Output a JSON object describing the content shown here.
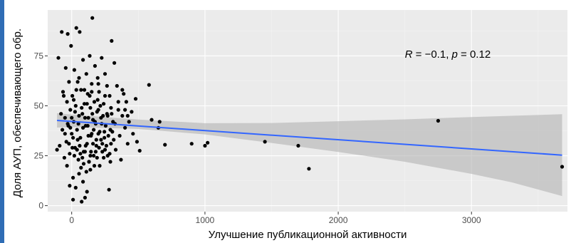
{
  "colors": {
    "panel": "#ebebeb",
    "grid_major": "#ffffff",
    "grid_minor": "#f3f3f3",
    "point": "#000000",
    "line": "#3366ff",
    "ribbon": "#b3b3b3",
    "accent": "#2f6db5"
  },
  "chart_data": {
    "type": "scatter",
    "title": "",
    "xlabel": "Улучшение публикационной активности",
    "ylabel": "Доля АУП, обеспечивающего обр.",
    "xlim": [
      -180,
      3720
    ],
    "ylim": [
      -3,
      98
    ],
    "x_ticks": [
      0,
      1000,
      2000,
      3000
    ],
    "x_tick_labels": [
      "0",
      "1000",
      "2000",
      "3000"
    ],
    "y_ticks": [
      0,
      25,
      50,
      75
    ],
    "y_tick_labels": [
      "0",
      "25",
      "50",
      "75"
    ],
    "grid": true,
    "legend": "none",
    "annotation": {
      "parts": [
        {
          "text": "R",
          "italic": true
        },
        {
          "text": " = −0.1, ",
          "italic": false
        },
        {
          "text": "p",
          "italic": true
        },
        {
          "text": " = 0.12",
          "italic": false
        }
      ],
      "x": 2500,
      "y": 74
    },
    "regression": {
      "x": [
        -110,
        3680
      ],
      "y": [
        42.7,
        25.3
      ]
    },
    "ribbon": {
      "x": [
        -110,
        0,
        500,
        1000,
        1500,
        2000,
        2500,
        3000,
        3300,
        3680
      ],
      "upper": [
        46.3,
        45.6,
        43.1,
        41.3,
        41.4,
        42.3,
        43.2,
        44.4,
        45.0,
        45.8
      ],
      "lower": [
        39.1,
        39.4,
        38.4,
        35.7,
        31.4,
        26.9,
        22.0,
        15.9,
        11.7,
        4.8
      ]
    },
    "points": [
      {
        "x": 2750,
        "y": 42.5
      },
      {
        "x": 3680,
        "y": 19.5
      },
      {
        "x": 1450,
        "y": 32
      },
      {
        "x": 1700,
        "y": 30
      },
      {
        "x": 1780,
        "y": 18.5
      },
      {
        "x": 1000,
        "y": 30
      },
      {
        "x": 1020,
        "y": 31.5
      },
      {
        "x": 900,
        "y": 31
      },
      {
        "x": 700,
        "y": 30.5
      },
      {
        "x": 660,
        "y": 42
      },
      {
        "x": 650,
        "y": 39
      },
      {
        "x": 600,
        "y": 43
      },
      {
        "x": 580,
        "y": 60.5
      },
      {
        "x": 510,
        "y": 27.5
      },
      {
        "x": 490,
        "y": 32
      },
      {
        "x": 480,
        "y": 53.5
      },
      {
        "x": 460,
        "y": 36
      },
      {
        "x": 450,
        "y": 47
      },
      {
        "x": 430,
        "y": 42
      },
      {
        "x": 420,
        "y": 31
      },
      {
        "x": 410,
        "y": 52
      },
      {
        "x": 400,
        "y": 39
      },
      {
        "x": 390,
        "y": 56
      },
      {
        "x": 380,
        "y": 45
      },
      {
        "x": 370,
        "y": 23
      },
      {
        "x": 360,
        "y": 35
      },
      {
        "x": 350,
        "y": 48
      },
      {
        "x": 340,
        "y": 60
      },
      {
        "x": 330,
        "y": 28
      },
      {
        "x": 320,
        "y": 71.5
      },
      {
        "x": 315,
        "y": 33
      },
      {
        "x": 310,
        "y": 42
      },
      {
        "x": 300,
        "y": 82.5
      },
      {
        "x": 295,
        "y": 49
      },
      {
        "x": 290,
        "y": 38
      },
      {
        "x": 285,
        "y": 55
      },
      {
        "x": 280,
        "y": 8
      },
      {
        "x": 270,
        "y": 45
      },
      {
        "x": 265,
        "y": 60
      },
      {
        "x": 260,
        "y": 30
      },
      {
        "x": 250,
        "y": 66
      },
      {
        "x": 245,
        "y": 37
      },
      {
        "x": 240,
        "y": 51
      },
      {
        "x": 230,
        "y": 27
      },
      {
        "x": 225,
        "y": 74
      },
      {
        "x": 220,
        "y": 44
      },
      {
        "x": 210,
        "y": 20
      },
      {
        "x": 205,
        "y": 57
      },
      {
        "x": 200,
        "y": 36
      },
      {
        "x": 195,
        "y": 64
      },
      {
        "x": 190,
        "y": 47
      },
      {
        "x": 185,
        "y": 30
      },
      {
        "x": 180,
        "y": 41
      },
      {
        "x": 175,
        "y": 70
      },
      {
        "x": 170,
        "y": 52
      },
      {
        "x": 165,
        "y": 25
      },
      {
        "x": 160,
        "y": 43
      },
      {
        "x": 155,
        "y": 94
      },
      {
        "x": 150,
        "y": 61
      },
      {
        "x": 145,
        "y": 35
      },
      {
        "x": 140,
        "y": 49
      },
      {
        "x": 135,
        "y": 75
      },
      {
        "x": 130,
        "y": 22
      },
      {
        "x": 125,
        "y": 44
      },
      {
        "x": 120,
        "y": 56
      },
      {
        "x": 115,
        "y": 31
      },
      {
        "x": 110,
        "y": 66
      },
      {
        "x": 105,
        "y": 40
      },
      {
        "x": 100,
        "y": 4
      },
      {
        "x": 95,
        "y": 51
      },
      {
        "x": 90,
        "y": 27
      },
      {
        "x": 85,
        "y": 73
      },
      {
        "x": 80,
        "y": 46
      },
      {
        "x": 75,
        "y": 2
      },
      {
        "x": 70,
        "y": 58
      },
      {
        "x": 65,
        "y": 34
      },
      {
        "x": 60,
        "y": 87
      },
      {
        "x": 55,
        "y": 45
      },
      {
        "x": 50,
        "y": 23
      },
      {
        "x": 45,
        "y": 62
      },
      {
        "x": 40,
        "y": 38
      },
      {
        "x": 35,
        "y": 89
      },
      {
        "x": 30,
        "y": 50
      },
      {
        "x": 25,
        "y": 29
      },
      {
        "x": 20,
        "y": 68
      },
      {
        "x": 15,
        "y": 42
      },
      {
        "x": 10,
        "y": 14
      },
      {
        "x": 5,
        "y": 55
      },
      {
        "x": 0,
        "y": 36
      },
      {
        "x": -5,
        "y": 80
      },
      {
        "x": -10,
        "y": 48
      },
      {
        "x": -15,
        "y": 26
      },
      {
        "x": -20,
        "y": 62
      },
      {
        "x": -25,
        "y": 40
      },
      {
        "x": -30,
        "y": 86
      },
      {
        "x": -35,
        "y": 52
      },
      {
        "x": -40,
        "y": 32
      },
      {
        "x": -45,
        "y": 69
      },
      {
        "x": -50,
        "y": 44
      },
      {
        "x": -55,
        "y": 24
      },
      {
        "x": -60,
        "y": 55
      },
      {
        "x": -70,
        "y": 38
      },
      {
        "x": -80,
        "y": 46
      },
      {
        "x": -90,
        "y": 30
      },
      {
        "x": -100,
        "y": 74
      },
      {
        "x": -110,
        "y": 28
      },
      {
        "x": -75,
        "y": 87
      },
      {
        "x": -65,
        "y": 57
      },
      {
        "x": -35,
        "y": 20
      },
      {
        "x": -15,
        "y": 10
      },
      {
        "x": 10,
        "y": 3
      },
      {
        "x": 30,
        "y": 9
      },
      {
        "x": 55,
        "y": 16
      },
      {
        "x": 85,
        "y": 12
      },
      {
        "x": 115,
        "y": 7
      },
      {
        "x": 140,
        "y": 18
      },
      {
        "x": 25,
        "y": 47
      },
      {
        "x": 45,
        "y": 33
      },
      {
        "x": 65,
        "y": 26
      },
      {
        "x": 85,
        "y": 39
      },
      {
        "x": 105,
        "y": 30
      },
      {
        "x": 125,
        "y": 35
      },
      {
        "x": 145,
        "y": 27
      },
      {
        "x": 165,
        "y": 38
      },
      {
        "x": 185,
        "y": 33
      },
      {
        "x": 205,
        "y": 29
      },
      {
        "x": 225,
        "y": 41
      },
      {
        "x": 245,
        "y": 34
      },
      {
        "x": 265,
        "y": 46
      },
      {
        "x": 285,
        "y": 26
      },
      {
        "x": 305,
        "y": 37
      },
      {
        "x": 325,
        "y": 41
      },
      {
        "x": 20,
        "y": 25
      },
      {
        "x": 40,
        "y": 28
      },
      {
        "x": 60,
        "y": 30
      },
      {
        "x": 80,
        "y": 24
      },
      {
        "x": 100,
        "y": 27
      },
      {
        "x": 120,
        "y": 40
      },
      {
        "x": 140,
        "y": 25
      },
      {
        "x": 160,
        "y": 31
      },
      {
        "x": 180,
        "y": 27
      },
      {
        "x": 200,
        "y": 48
      },
      {
        "x": 220,
        "y": 33
      },
      {
        "x": 240,
        "y": 24
      },
      {
        "x": 10,
        "y": 34
      },
      {
        "x": -30,
        "y": 41
      },
      {
        "x": -50,
        "y": 36
      },
      {
        "x": -20,
        "y": 31
      },
      {
        "x": 0,
        "y": 44
      },
      {
        "x": 15,
        "y": 53
      },
      {
        "x": 35,
        "y": 58
      },
      {
        "x": 55,
        "y": 64
      },
      {
        "x": 75,
        "y": 49
      },
      {
        "x": 95,
        "y": 58
      },
      {
        "x": 115,
        "y": 51
      },
      {
        "x": 135,
        "y": 55
      },
      {
        "x": 155,
        "y": 46
      },
      {
        "x": 175,
        "y": 42
      },
      {
        "x": 195,
        "y": 53
      },
      {
        "x": 215,
        "y": 50
      },
      {
        "x": 235,
        "y": 45
      },
      {
        "x": 255,
        "y": 40
      },
      {
        "x": 275,
        "y": 35
      },
      {
        "x": 295,
        "y": 31
      },
      {
        "x": 70,
        "y": 19
      },
      {
        "x": 90,
        "y": 21
      },
      {
        "x": 110,
        "y": 17
      },
      {
        "x": 130,
        "y": 22
      },
      {
        "x": 150,
        "y": 36
      },
      {
        "x": 170,
        "y": 20
      },
      {
        "x": 190,
        "y": 24
      },
      {
        "x": 210,
        "y": 37
      },
      {
        "x": 230,
        "y": 31
      },
      {
        "x": 250,
        "y": 28
      },
      {
        "x": 270,
        "y": 25
      },
      {
        "x": 290,
        "y": 22
      },
      {
        "x": -10,
        "y": 39
      },
      {
        "x": 5,
        "y": 29
      },
      {
        "x": 50,
        "y": 41
      },
      {
        "x": 100,
        "y": 44
      },
      {
        "x": 150,
        "y": 57
      },
      {
        "x": 200,
        "y": 61
      },
      {
        "x": 250,
        "y": 55
      },
      {
        "x": 300,
        "y": 46
      },
      {
        "x": 350,
        "y": 52
      },
      {
        "x": 380,
        "y": 58
      },
      {
        "x": 400,
        "y": 48
      },
      {
        "x": 420,
        "y": 45
      }
    ]
  }
}
